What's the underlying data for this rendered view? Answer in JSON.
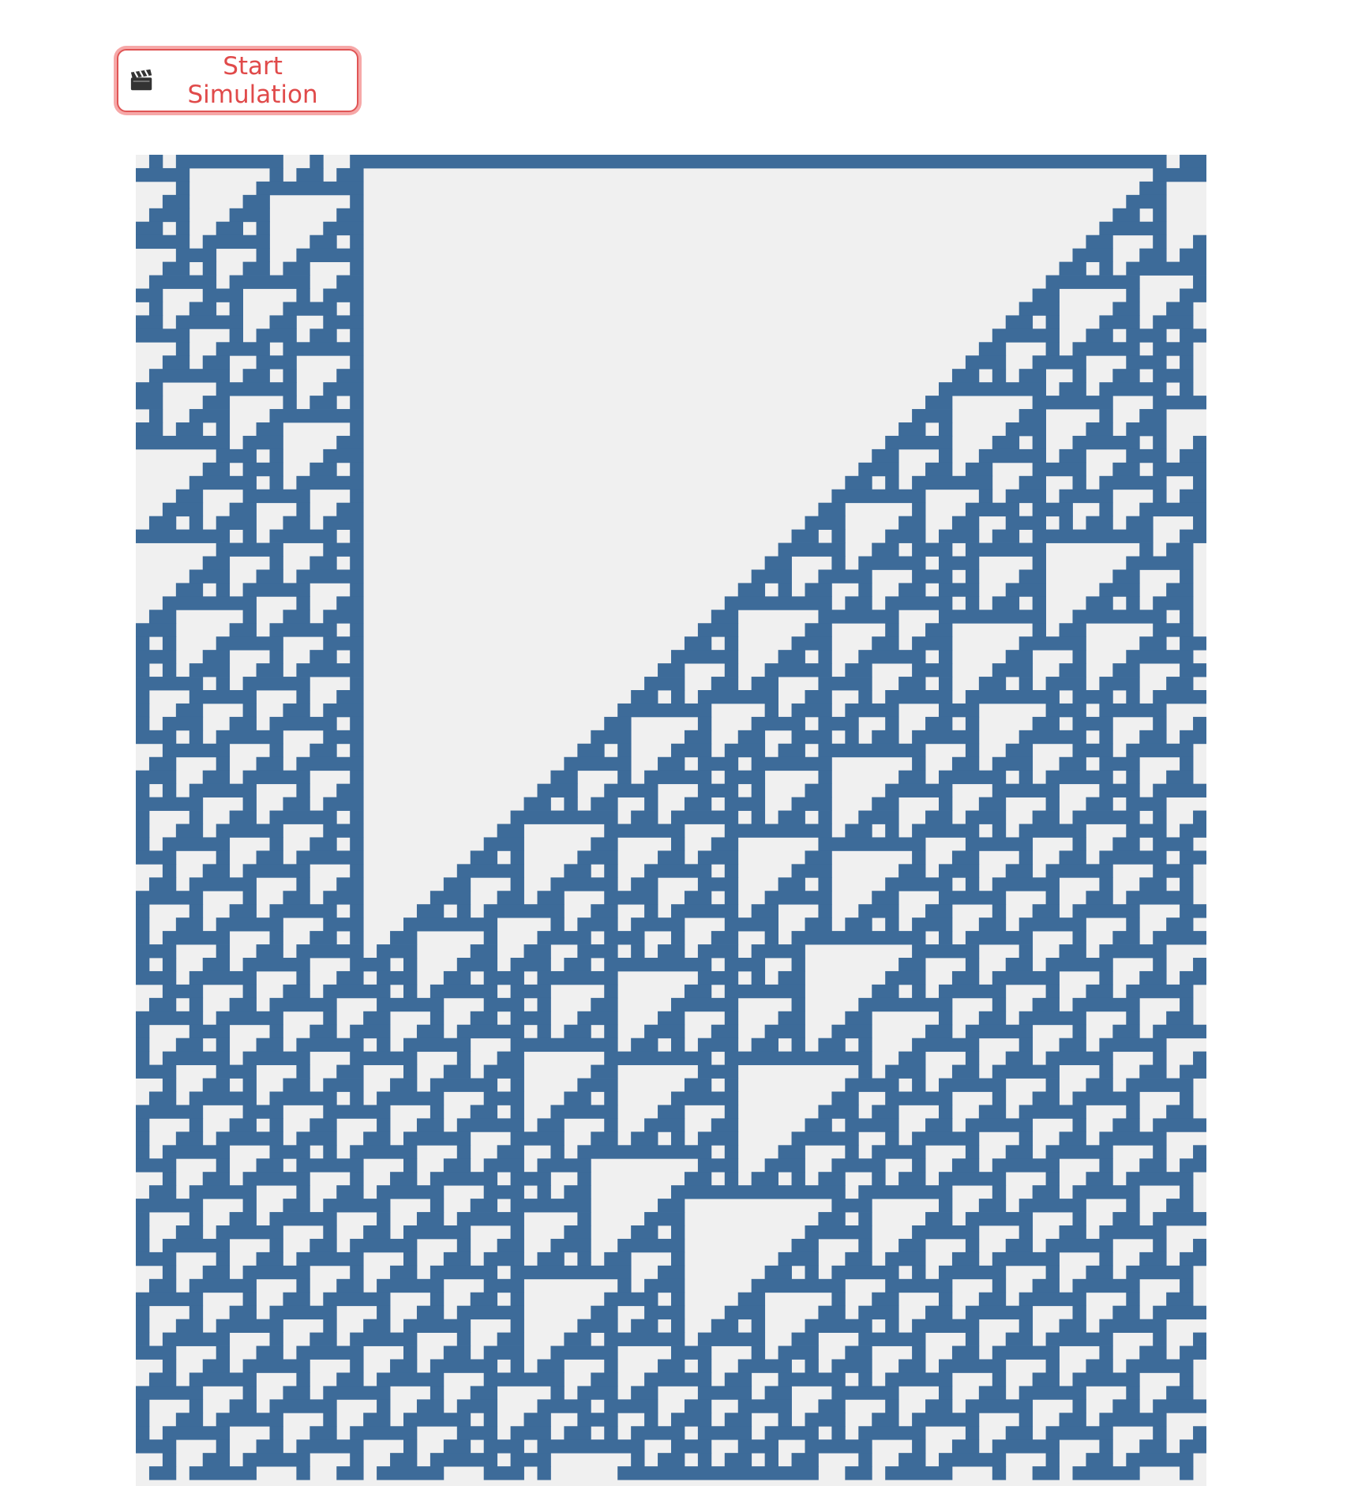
{
  "controls": {
    "start_button": {
      "label": "Start Simulation",
      "icon": "clapperboard-icon"
    }
  },
  "simulation": {
    "type": "1D cellular automaton space-time diagram",
    "columns": 80,
    "visible_rows": 99,
    "live_color": "#3d6b99",
    "dead_color": "#f0f0f0"
  }
}
